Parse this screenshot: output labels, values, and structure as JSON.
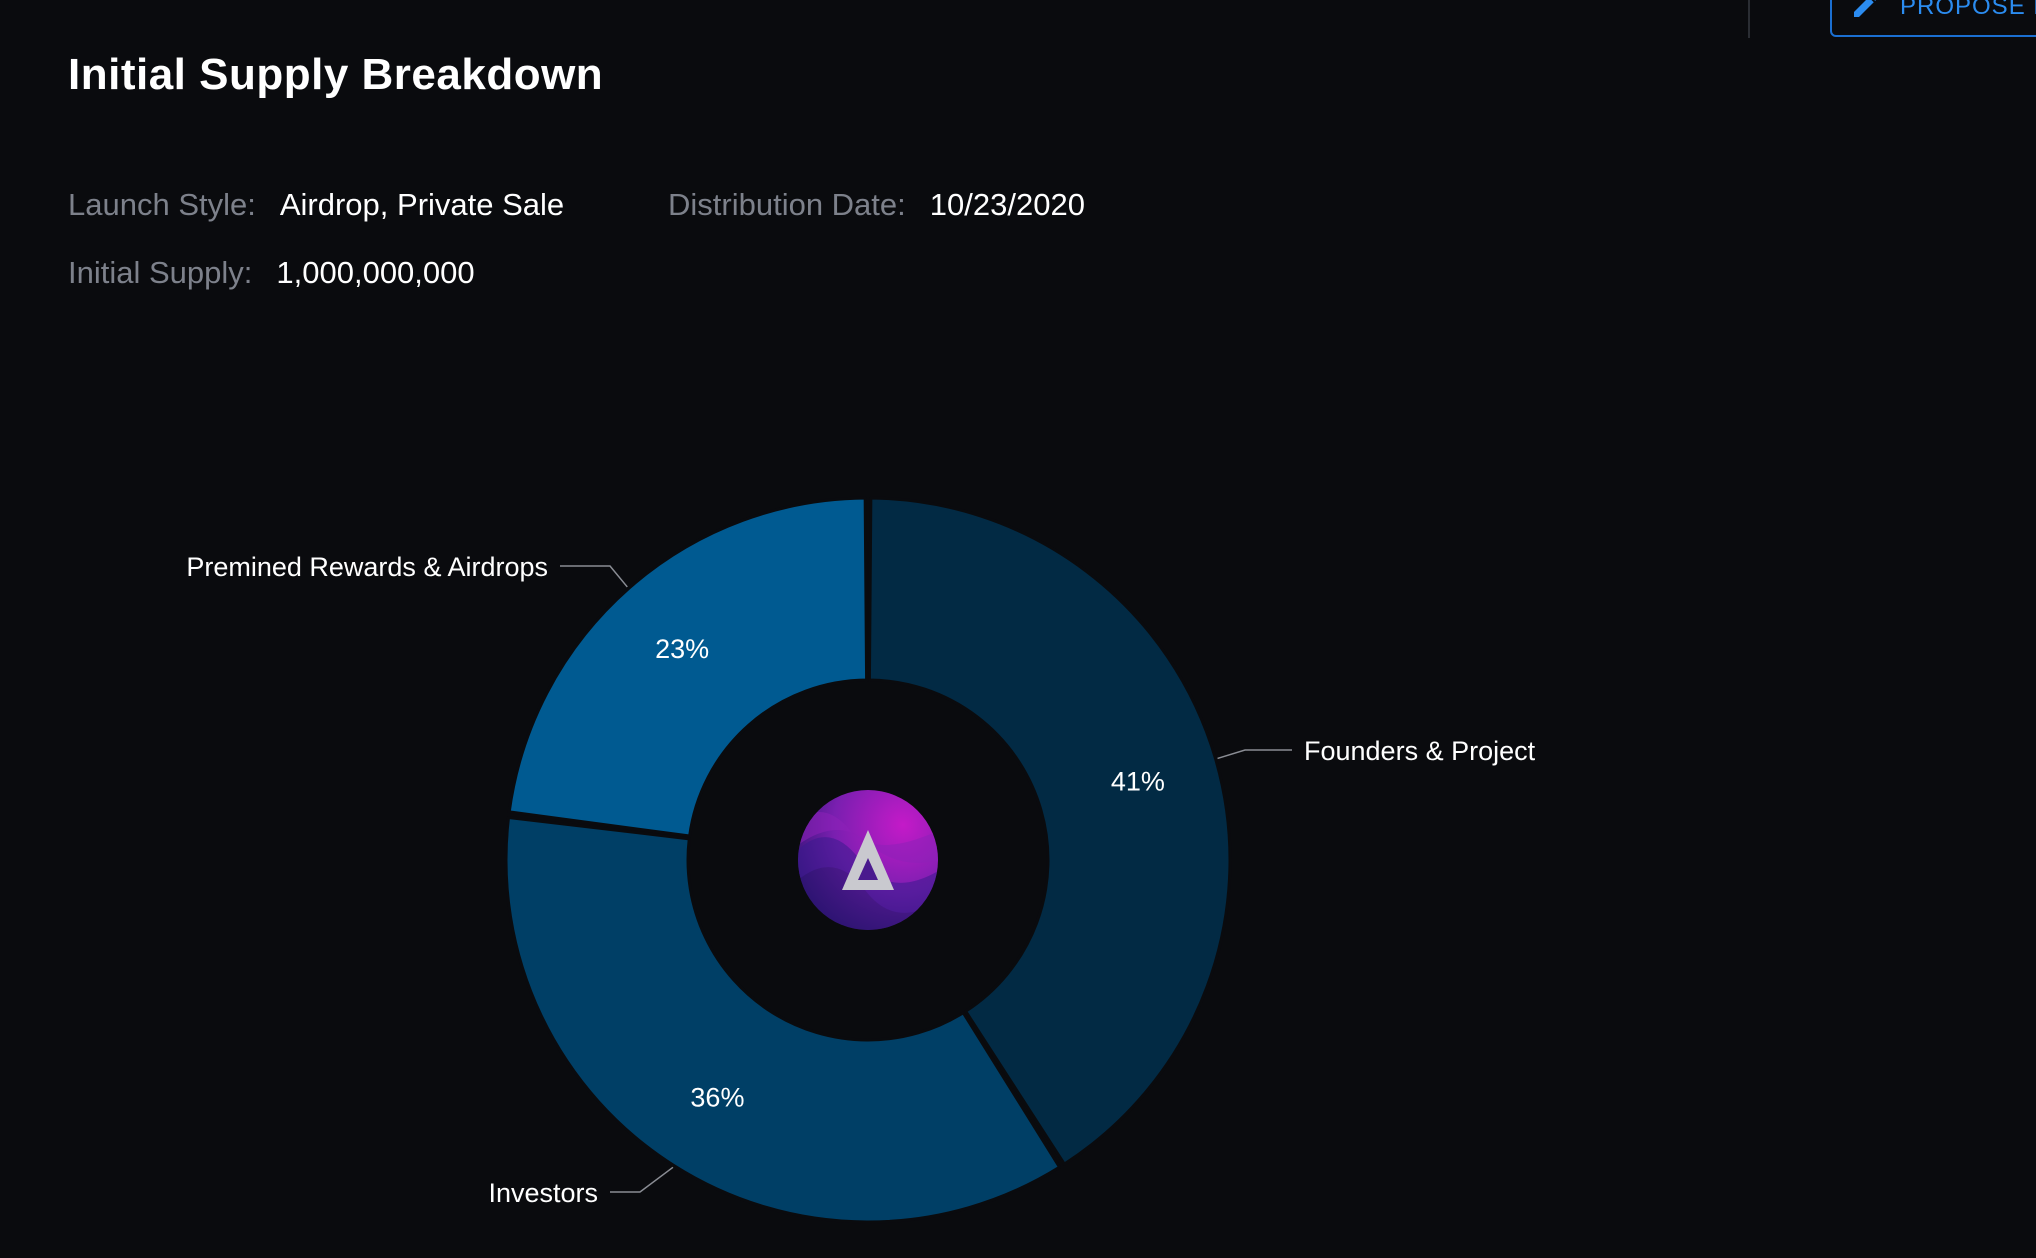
{
  "header": {
    "title": "Initial Supply Breakdown",
    "propose_label": "PROPOSE E"
  },
  "meta": {
    "launch_style_label": "Launch Style:",
    "launch_style_value": "Airdrop, Private Sale",
    "distribution_date_label": "Distribution Date:",
    "distribution_date_value": "10/23/2020",
    "initial_supply_label": "Initial Supply:",
    "initial_supply_value": "1,000,000,000"
  },
  "chart_data": {
    "type": "pie",
    "donut": true,
    "title": "",
    "slices": [
      {
        "name": "Founders & Project",
        "value": 41,
        "label": "41%",
        "color": "#022a44"
      },
      {
        "name": "Investors",
        "value": 36,
        "label": "36%",
        "color": "#003f66"
      },
      {
        "name": "Premined Rewards & Airdrops",
        "value": 23,
        "label": "23%",
        "color": "#005a91"
      }
    ],
    "legend": "callout-labels",
    "center_icon": "token-logo-icon"
  },
  "colors": {
    "background": "#0a0b0e",
    "accent": "#1b6fd1",
    "logo_start": "#3a1a8a",
    "logo_end": "#b018c0"
  }
}
